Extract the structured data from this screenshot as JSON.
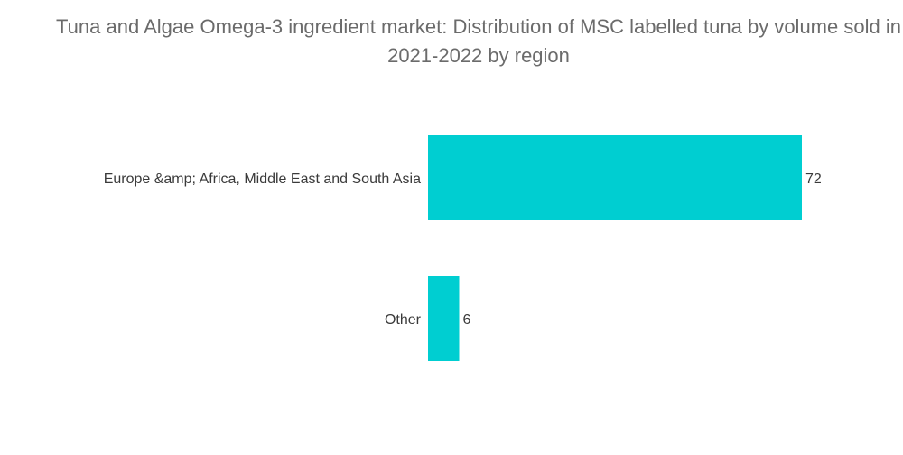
{
  "chart_data": {
    "type": "bar",
    "orientation": "horizontal",
    "title": "Tuna and Algae Omega-3 ingredient market: Distribution of MSC labelled tuna by volume sold in 2021-2022 by region",
    "categories": [
      "Europe &amp; Africa, Middle East and South Asia",
      "Other"
    ],
    "values": [
      72,
      6
    ],
    "data_labels": [
      "72",
      "6"
    ],
    "xlim": [
      0,
      72
    ],
    "grid": false,
    "bar_color": "#00ced1"
  }
}
